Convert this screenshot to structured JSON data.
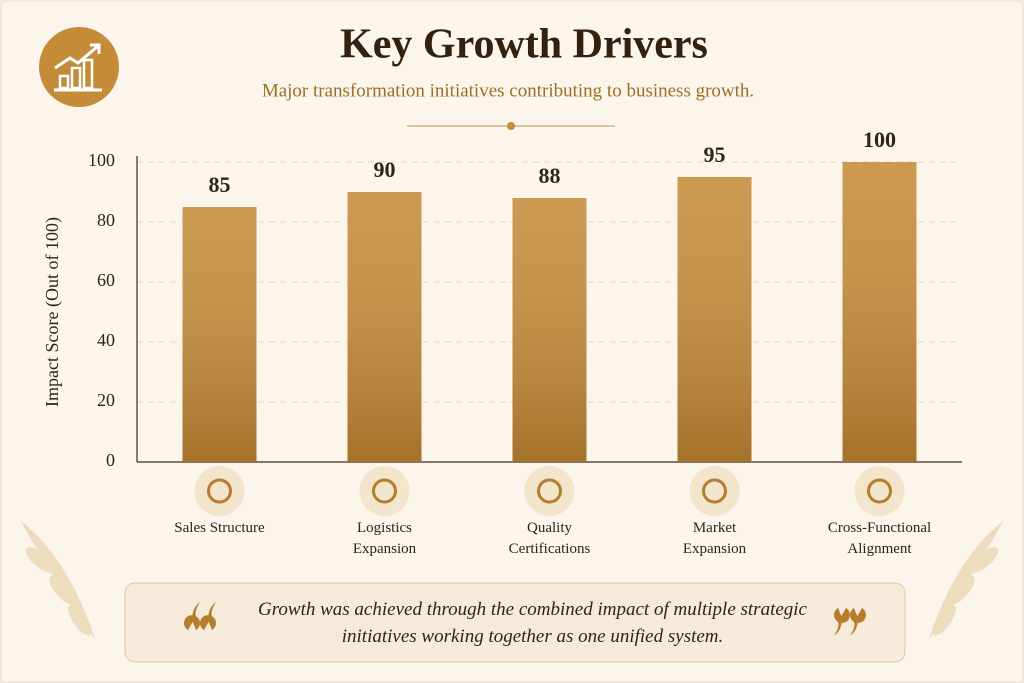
{
  "chart_data": {
    "type": "bar",
    "title": "Key Growth Drivers",
    "subtitle": "Major transformation initiatives contributing to business growth.",
    "y_label": "Impact Score (Out of 100)",
    "categories": [
      "Sales Structure",
      "Logistics Expansion",
      "Quality Certifications",
      "Market Expansion",
      "Cross-Functional Alignment"
    ],
    "values": [
      85,
      90,
      88,
      95,
      100
    ],
    "color": "#c48c38",
    "ylim": [
      0,
      100
    ],
    "yticks": [
      0,
      20,
      40,
      60,
      80,
      100
    ],
    "grid": true,
    "quote": "Growth was achieved through the combined impact of multiple strategic initiatives working together as one unified system."
  }
}
